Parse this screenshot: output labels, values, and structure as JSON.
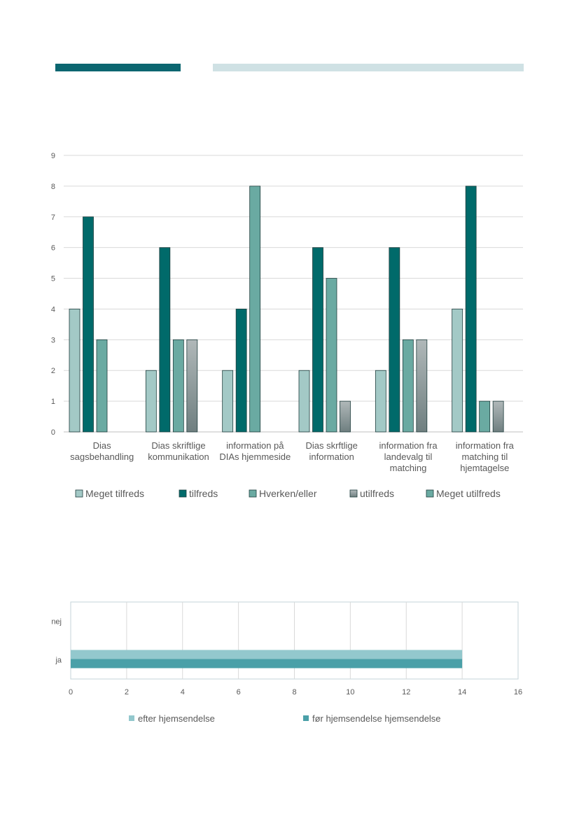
{
  "header": {
    "dark_color": "#0b6670",
    "light_color": "#cfe1e4"
  },
  "chart_data": [
    {
      "type": "bar",
      "categories": [
        [
          "Dias",
          "sagsbehandling"
        ],
        [
          "Dias skriftlige",
          "kommunikation"
        ],
        [
          "information på",
          "DIAs hjemmeside"
        ],
        [
          "Dias skrftlige",
          "information"
        ],
        [
          "information fra",
          "landevalg til",
          "matching"
        ],
        [
          "information fra",
          "matching til",
          "hjemtagelse"
        ]
      ],
      "series": [
        {
          "name": "Meget tilfreds",
          "values": [
            4,
            2,
            2,
            2,
            2,
            4
          ],
          "color": "#a3c9c6"
        },
        {
          "name": "tilfreds",
          "values": [
            7,
            6,
            4,
            6,
            6,
            8
          ],
          "color": "#006a6a"
        },
        {
          "name": "Hverken/eller",
          "values": [
            3,
            3,
            8,
            5,
            3,
            1
          ],
          "color": "#6aaaa2"
        },
        {
          "name": "utilfreds",
          "values": [
            0,
            3,
            0,
            1,
            3,
            1
          ],
          "color": "#8a9a9b"
        },
        {
          "name": "Meget utilfreds",
          "values": [
            0,
            0,
            0,
            0,
            0,
            0
          ],
          "color": "#6aaaa2"
        }
      ],
      "ylim": [
        0,
        9
      ],
      "yticks": [
        0,
        1,
        2,
        3,
        4,
        5,
        6,
        7,
        8,
        9
      ],
      "grid": true,
      "legend": "bottom"
    },
    {
      "type": "bar",
      "orientation": "horizontal",
      "categories": [
        "nej",
        "ja"
      ],
      "series": [
        {
          "name": "efter hjemsendelse",
          "values": [
            0,
            14
          ],
          "color": "#93c8cd"
        },
        {
          "name": "før hjemsendelse hjemsendelse",
          "values": [
            0,
            14
          ],
          "color": "#4aa0a8"
        }
      ],
      "xlim": [
        0,
        16
      ],
      "xticks": [
        0,
        2,
        4,
        6,
        8,
        10,
        12,
        14,
        16
      ],
      "grid": true,
      "legend": "bottom"
    }
  ]
}
